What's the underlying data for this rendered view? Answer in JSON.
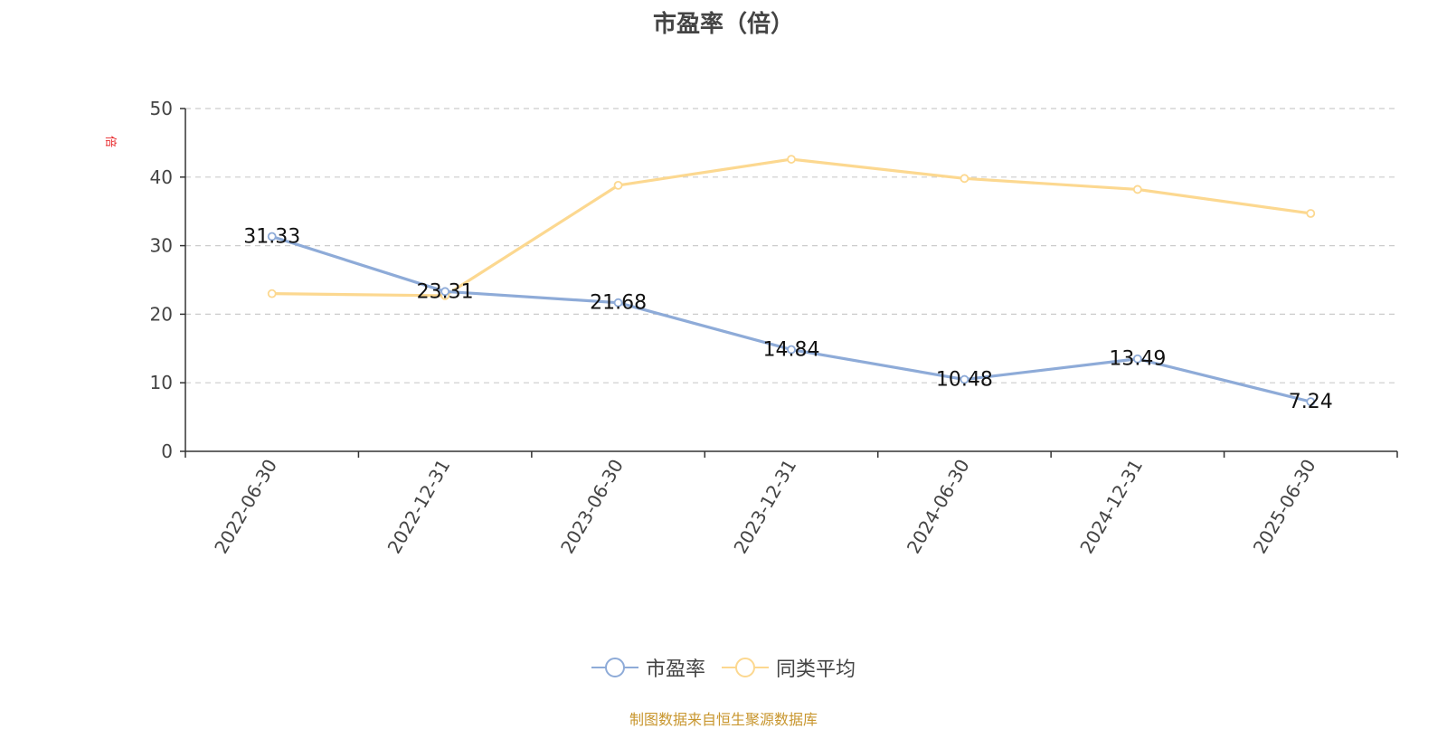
{
  "colors": {
    "series_pe": "#8eabd8",
    "series_avg": "#fcd890",
    "unit": "#e8272a",
    "source": "#c8962e"
  },
  "chart_data": {
    "type": "line",
    "title": "市盈率（倍）",
    "ylabel": "倍",
    "xlabel": "",
    "ylim": [
      0,
      50
    ],
    "y_ticks": [
      0,
      10,
      20,
      30,
      40,
      50
    ],
    "grid": true,
    "legend_position": "bottom-center",
    "categories": [
      "2022-06-30",
      "2022-12-31",
      "2023-06-30",
      "2023-12-31",
      "2024-06-30",
      "2024-12-31",
      "2025-06-30"
    ],
    "series": [
      {
        "name": "市盈率",
        "values": [
          31.33,
          23.31,
          21.68,
          14.84,
          10.48,
          13.49,
          7.24
        ],
        "labels": [
          "31.33",
          "23.31",
          "21.68",
          "14.84",
          "10.48",
          "13.49",
          "7.24"
        ]
      },
      {
        "name": "同类平均",
        "values": [
          23.0,
          22.7,
          38.8,
          42.6,
          39.8,
          38.2,
          34.7
        ]
      }
    ]
  },
  "source_note": "制图数据来自恒生聚源数据库"
}
